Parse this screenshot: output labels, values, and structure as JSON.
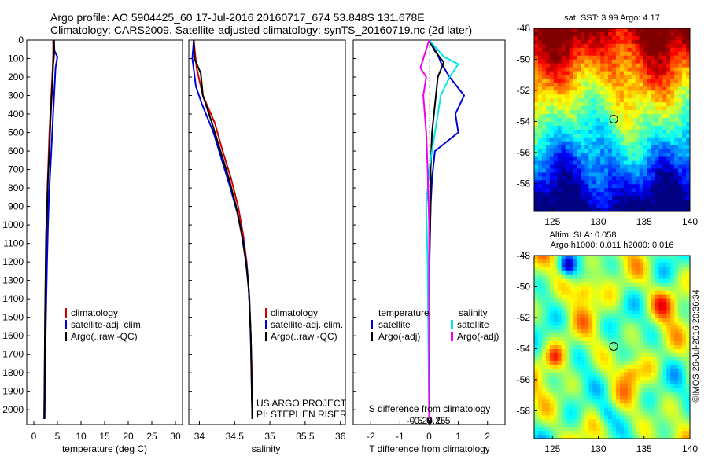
{
  "header": {
    "line1": "Argo profile: AO 5904425_60 17-Jul-2016 20160717_674 53.848S 131.678E",
    "line2": "Climatology: CARS2009. Satellite-adjusted climatology: synTS_20160719.nc (2d later)"
  },
  "credit": {
    "project": "US ARGO PROJECT",
    "pi": "PI: STEPHEN RISER",
    "stamp": "©IMOS 26-Jul-2016 20:36:34"
  },
  "colors": {
    "climatology": "#cc0000",
    "satellite": "#0000dd",
    "argo": "#000000",
    "sal_satellite": "#00e5e5",
    "sal_argo": "#ee00ee"
  },
  "chart_data": [
    {
      "type": "line",
      "panel": "temperature",
      "xlabel": "temperature (deg C)",
      "ylabel": "",
      "xlim": [
        -1.5,
        31.5
      ],
      "ylim": [
        2080,
        0
      ],
      "xticks": [
        0,
        5,
        10,
        15,
        20,
        25,
        30
      ],
      "yticks": [
        0,
        100,
        200,
        300,
        400,
        500,
        600,
        700,
        800,
        900,
        1000,
        1100,
        1200,
        1300,
        1400,
        1500,
        1600,
        1700,
        1800,
        1900,
        2000
      ],
      "legend": [
        "climatology",
        "satellite-adj. clim.",
        "Argo(..raw -QC)"
      ],
      "series": [
        {
          "name": "climatology",
          "color": "#cc0000",
          "x": [
            4.1,
            4.1,
            4.0,
            3.8,
            3.6,
            3.3,
            3.1,
            2.9,
            2.8,
            2.6,
            2.5,
            2.4,
            2.3,
            2.2
          ],
          "y": [
            0,
            80,
            150,
            250,
            350,
            500,
            650,
            800,
            950,
            1100,
            1300,
            1500,
            1800,
            2050
          ]
        },
        {
          "name": "satellite-adj. clim.",
          "color": "#0000dd",
          "x": [
            4.2,
            4.4,
            5.0,
            4.6,
            4.4,
            4.1,
            3.8,
            3.5,
            3.2,
            3.0,
            2.8,
            2.6,
            2.4,
            2.3
          ],
          "y": [
            0,
            60,
            90,
            150,
            250,
            400,
            550,
            700,
            850,
            1000,
            1200,
            1450,
            1750,
            2050
          ]
        },
        {
          "name": "Argo(..raw -QC)",
          "color": "#000000",
          "x": [
            4.3,
            4.3,
            4.1,
            3.9,
            3.7,
            3.5,
            3.3,
            3.0,
            2.8,
            2.6,
            2.5,
            2.4,
            2.3,
            2.2
          ],
          "y": [
            0,
            80,
            130,
            250,
            350,
            450,
            600,
            750,
            900,
            1050,
            1250,
            1450,
            1750,
            2050
          ]
        }
      ]
    },
    {
      "type": "line",
      "panel": "salinity",
      "xlabel": "salinity",
      "ylabel": "",
      "xlim": [
        33.85,
        36.07
      ],
      "ylim": [
        2080,
        0
      ],
      "xticks": [
        34,
        34.5,
        35,
        35.5,
        36
      ],
      "legend": [
        "climatology",
        "satellite-adj. clim.",
        "Argo(..raw -QC)"
      ],
      "series": [
        {
          "name": "climatology",
          "color": "#cc0000",
          "x": [
            33.92,
            33.96,
            34.05,
            34.22,
            34.33,
            34.45,
            34.55,
            34.62,
            34.67,
            34.7,
            34.72,
            34.74,
            34.75
          ],
          "y": [
            0,
            150,
            300,
            450,
            600,
            750,
            900,
            1050,
            1200,
            1350,
            1500,
            1750,
            2050
          ]
        },
        {
          "name": "satellite-adj. clim.",
          "color": "#0000dd",
          "x": [
            33.92,
            33.9,
            33.95,
            34.04,
            34.2,
            34.32,
            34.44,
            34.55,
            34.63,
            34.68,
            34.71,
            34.73,
            34.75
          ],
          "y": [
            0,
            100,
            250,
            350,
            500,
            650,
            800,
            950,
            1100,
            1250,
            1400,
            1650,
            2050
          ]
        },
        {
          "name": "Argo(..raw -QC)",
          "color": "#000000",
          "x": [
            33.92,
            33.93,
            34.02,
            34.05,
            34.18,
            34.3,
            34.42,
            34.52,
            34.6,
            34.66,
            34.7,
            34.73,
            34.75
          ],
          "y": [
            0,
            100,
            180,
            300,
            450,
            600,
            750,
            900,
            1050,
            1200,
            1350,
            1600,
            2050
          ]
        }
      ]
    },
    {
      "type": "line",
      "panel": "difference",
      "xlabel": "T difference from climatology",
      "xlabel_top": "S difference from climatology",
      "ylabel": "",
      "xlim": [
        -2.6,
        2.6
      ],
      "ylim": [
        2080,
        0
      ],
      "xticks": [
        -2,
        -1,
        0,
        1,
        2
      ],
      "xticks_top": [
        "-0.5",
        "-0.25",
        "0",
        "0.25",
        "0.5"
      ],
      "xticks_top_values": [
        -0.5,
        -0.25,
        0,
        0.25,
        0.5
      ],
      "legend": [
        "temperature",
        "satellite",
        "Argo(-adj)",
        "salinity",
        "satellite",
        "Argo(-adj)"
      ],
      "series": [
        {
          "name": "T satellite",
          "color": "#0000dd",
          "x": [
            0,
            0.3,
            0.4,
            0.7,
            1.2,
            0.9,
            1.0,
            0.2,
            0.1,
            0.05,
            0,
            0
          ],
          "y": [
            0,
            80,
            120,
            200,
            300,
            400,
            500,
            600,
            750,
            900,
            1200,
            2050
          ]
        },
        {
          "name": "T Argo(-adj)",
          "color": "#000000",
          "x": [
            0,
            0.2,
            0.5,
            0.3,
            0.2,
            0.1,
            0.05,
            0.05,
            0,
            0
          ],
          "y": [
            0,
            60,
            120,
            200,
            350,
            500,
            700,
            900,
            1300,
            2050
          ]
        },
        {
          "name": "S satellite",
          "color": "#00e5e5",
          "x": [
            0,
            0.5,
            1.0,
            0.7,
            0.4,
            0.2,
            0,
            -0.1,
            -0.05,
            0
          ],
          "y": [
            0,
            90,
            130,
            200,
            300,
            500,
            700,
            900,
            1200,
            2050
          ]
        },
        {
          "name": "S Argo(-adj)",
          "color": "#ee00ee",
          "x": [
            0,
            -0.3,
            -0.1,
            -0.2,
            -0.1,
            -0.05,
            0,
            0
          ],
          "y": [
            0,
            150,
            200,
            300,
            500,
            700,
            1000,
            2050
          ]
        }
      ]
    },
    {
      "type": "heatmap",
      "panel": "sst-map",
      "title": "sat. SST: 3.99  Argo: 4.17",
      "xlim": [
        123,
        140
      ],
      "ylim": [
        -59.8,
        -48
      ],
      "xticks": [
        125,
        130,
        135,
        140
      ],
      "yticks": [
        -48,
        -50,
        -52,
        -54,
        -56,
        -58
      ],
      "marker": {
        "x": 131.678,
        "y": -53.848
      }
    },
    {
      "type": "heatmap",
      "panel": "sla-map",
      "title": "Altim. SLA: 0.058",
      "subtitle": "Argo h1000: 0.011  h2000: 0.016",
      "xlim": [
        123,
        140
      ],
      "ylim": [
        -59.8,
        -48
      ],
      "xticks": [
        125,
        130,
        135,
        140
      ],
      "yticks": [
        -48,
        -50,
        -52,
        -54,
        -56,
        -58
      ],
      "marker": {
        "x": 131.678,
        "y": -53.848
      }
    }
  ]
}
